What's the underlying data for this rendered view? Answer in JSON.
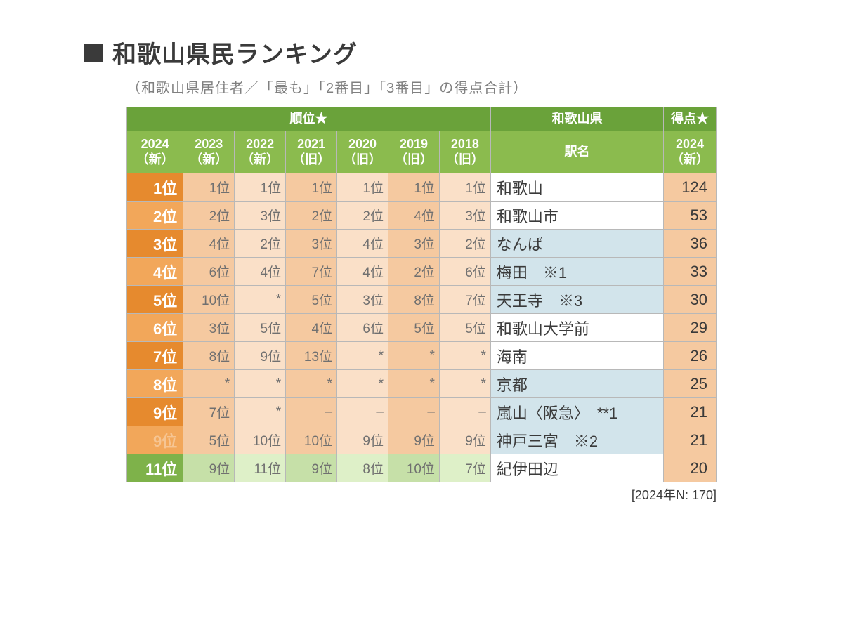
{
  "title": "和歌山県民ランキング",
  "subtitle": "（和歌山県居住者／「最も」「2番目」「3番目」の得点合計）",
  "footnote": "[2024年N:  170]",
  "colors": {
    "header_green_dark": "#6aa23a",
    "header_green_light": "#8bbb4e",
    "rank_orange_dark": "#e68a2e",
    "rank_orange_light": "#f2a75a",
    "rank_green_dark": "#7eb24a",
    "rank_green_light": "#a9cd7d",
    "cell_peach_dark": "#f5c9a0",
    "cell_peach_light": "#fae0c8",
    "cell_green_dark": "#c6e0a8",
    "cell_green_light": "#def0c8",
    "station_blue": "#d2e4eb",
    "white": "#ffffff",
    "border": "#b8b8b8"
  },
  "header": {
    "rank_group": "順位★",
    "prefecture": "和歌山県",
    "score_group": "得点★",
    "year_cols": [
      {
        "line1": "2024",
        "line2": "（新）"
      },
      {
        "line1": "2023",
        "line2": "（新）"
      },
      {
        "line1": "2022",
        "line2": "（新）"
      },
      {
        "line1": "2021",
        "line2": "（旧）"
      },
      {
        "line1": "2020",
        "line2": "（旧）"
      },
      {
        "line1": "2019",
        "line2": "（旧）"
      },
      {
        "line1": "2018",
        "line2": "（旧）"
      }
    ],
    "station_label": "駅名",
    "score_year": {
      "line1": "2024",
      "line2": "（新）"
    }
  },
  "rows": [
    {
      "rank2024": "1位",
      "rank24_bg": "#e68a2e",
      "rank_dim": false,
      "history": [
        "1位",
        "1位",
        "1位",
        "1位",
        "1位",
        "1位"
      ],
      "hist_style": "orange",
      "station": "和歌山",
      "station_bg": "#ffffff",
      "score": "124"
    },
    {
      "rank2024": "2位",
      "rank24_bg": "#f2a75a",
      "rank_dim": false,
      "history": [
        "2位",
        "3位",
        "2位",
        "2位",
        "4位",
        "3位"
      ],
      "hist_style": "orange",
      "station": "和歌山市",
      "station_bg": "#ffffff",
      "score": "53"
    },
    {
      "rank2024": "3位",
      "rank24_bg": "#e68a2e",
      "rank_dim": false,
      "history": [
        "4位",
        "2位",
        "3位",
        "4位",
        "3位",
        "2位"
      ],
      "hist_style": "orange",
      "station": "なんば",
      "station_bg": "#d2e4eb",
      "score": "36"
    },
    {
      "rank2024": "4位",
      "rank24_bg": "#f2a75a",
      "rank_dim": false,
      "history": [
        "6位",
        "4位",
        "7位",
        "4位",
        "2位",
        "6位"
      ],
      "hist_style": "orange",
      "station": "梅田　※1",
      "station_bg": "#d2e4eb",
      "score": "33"
    },
    {
      "rank2024": "5位",
      "rank24_bg": "#e68a2e",
      "rank_dim": false,
      "history": [
        "10位",
        "*",
        "5位",
        "3位",
        "8位",
        "7位"
      ],
      "hist_style": "orange",
      "station": "天王寺　※3",
      "station_bg": "#d2e4eb",
      "score": "30"
    },
    {
      "rank2024": "6位",
      "rank24_bg": "#f2a75a",
      "rank_dim": false,
      "history": [
        "3位",
        "5位",
        "4位",
        "6位",
        "5位",
        "5位"
      ],
      "hist_style": "orange",
      "station": "和歌山大学前",
      "station_bg": "#ffffff",
      "score": "29"
    },
    {
      "rank2024": "7位",
      "rank24_bg": "#e68a2e",
      "rank_dim": false,
      "history": [
        "8位",
        "9位",
        "13位",
        "*",
        "*",
        "*"
      ],
      "hist_style": "orange",
      "station": "海南",
      "station_bg": "#ffffff",
      "score": "26"
    },
    {
      "rank2024": "8位",
      "rank24_bg": "#f2a75a",
      "rank_dim": false,
      "history": [
        "*",
        "*",
        "*",
        "*",
        "*",
        "*"
      ],
      "hist_style": "orange",
      "station": "京都",
      "station_bg": "#d2e4eb",
      "score": "25"
    },
    {
      "rank2024": "9位",
      "rank24_bg": "#e68a2e",
      "rank_dim": false,
      "history": [
        "7位",
        "*",
        "–",
        "–",
        "–",
        "–"
      ],
      "hist_style": "orange",
      "station": "嵐山〈阪急〉　**1",
      "station_bg": "#d2e4eb",
      "score": "21"
    },
    {
      "rank2024": "9位",
      "rank24_bg": "#f2a75a",
      "rank_dim": true,
      "history": [
        "5位",
        "10位",
        "10位",
        "9位",
        "9位",
        "9位"
      ],
      "hist_style": "orange",
      "station": "神戸三宮　※2",
      "station_bg": "#d2e4eb",
      "score": "21"
    },
    {
      "rank2024": "11位",
      "rank24_bg": "#7eb24a",
      "rank_dim": false,
      "history": [
        "9位",
        "11位",
        "9位",
        "8位",
        "10位",
        "7位"
      ],
      "hist_style": "green",
      "station": "紀伊田辺",
      "station_bg": "#ffffff",
      "score": "20"
    }
  ],
  "history_palettes": {
    "orange": {
      "odd": "#f5c9a0",
      "even": "#fae0c8"
    },
    "green": {
      "odd": "#c6e0a8",
      "even": "#def0c8"
    }
  },
  "score_cell_bg": "#f5c9a0"
}
